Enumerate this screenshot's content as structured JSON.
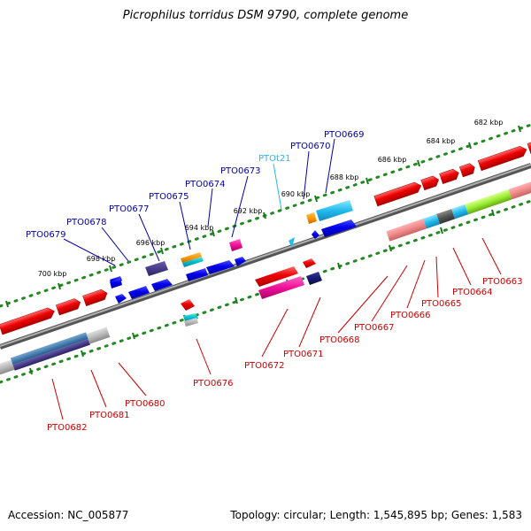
{
  "title": "Picrophilus torridus DSM 9790, complete genome",
  "footer": {
    "accession": "Accession: NC_005877",
    "summary": "Topology: circular; Length: 1,545,895 bp; Genes: 1,583"
  },
  "ruler_labels": [
    "682 kbp",
    "684 kbp",
    "686 kbp",
    "688 kbp",
    "690 kbp",
    "692 kbp",
    "694 kbp",
    "696 kbp",
    "698 kbp",
    "700 kbp"
  ],
  "gene_labels_top": [
    "PTO0679",
    "PTO0678",
    "PTO0677",
    "PTO0675",
    "PTO0674",
    "PTO0673",
    "PTOt21",
    "PTO0670",
    "PTO0669"
  ],
  "gene_labels_bottom": [
    "PTO0682",
    "PTO0681",
    "PTO0680",
    "PTO0676",
    "PTO0672",
    "PTO0671",
    "PTO0668",
    "PTO0667",
    "PTO0666",
    "PTO0665",
    "PTO0664",
    "PTO0663"
  ],
  "colors": {
    "top_label": "#0000aa",
    "bottom_label": "#cc0000",
    "trna_label": "#22bbee",
    "backbone": "#808080",
    "ruler_dot": "#228822",
    "ruler_tick": "#1a7a1a"
  }
}
